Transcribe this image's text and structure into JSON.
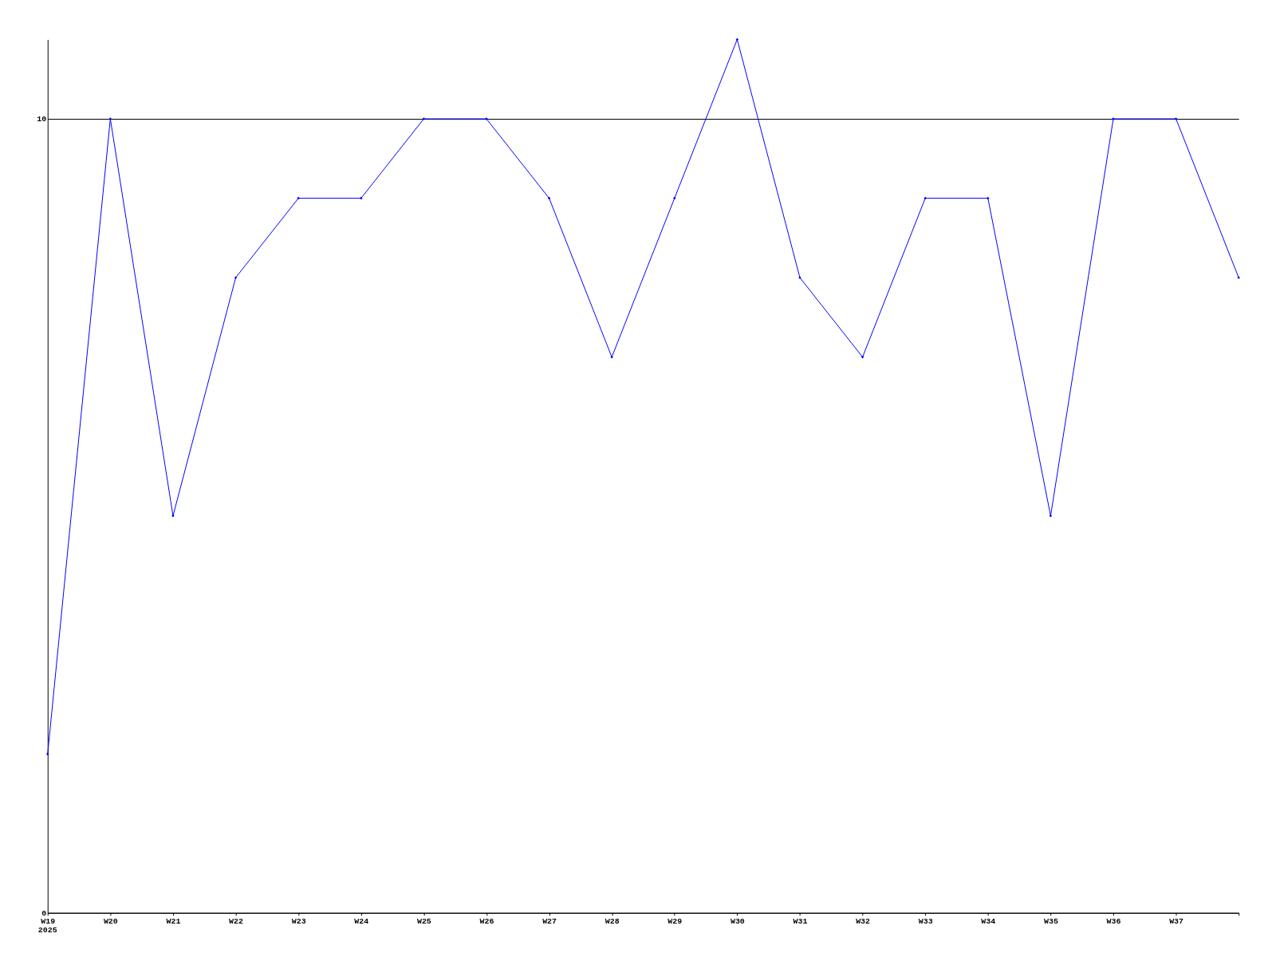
{
  "chart_data": {
    "type": "line",
    "categories": [
      "W19",
      "W20",
      "W21",
      "W22",
      "W23",
      "W24",
      "W25",
      "W26",
      "W27",
      "W28",
      "W29",
      "W30",
      "W31",
      "W32",
      "W33",
      "W34",
      "W35",
      "W36",
      "W37",
      null
    ],
    "series": [
      {
        "color": "#0000ff",
        "values": [
          2,
          10,
          5,
          8,
          9,
          9,
          10,
          10,
          9,
          7,
          9,
          11,
          8,
          7,
          9,
          9,
          5,
          10,
          10,
          8
        ]
      }
    ],
    "ylim": [
      0,
      11
    ],
    "yticks": [
      0,
      10
    ],
    "grid": "y",
    "marker": "diamond",
    "line_style": "solid",
    "annotations": [
      "2025"
    ]
  }
}
